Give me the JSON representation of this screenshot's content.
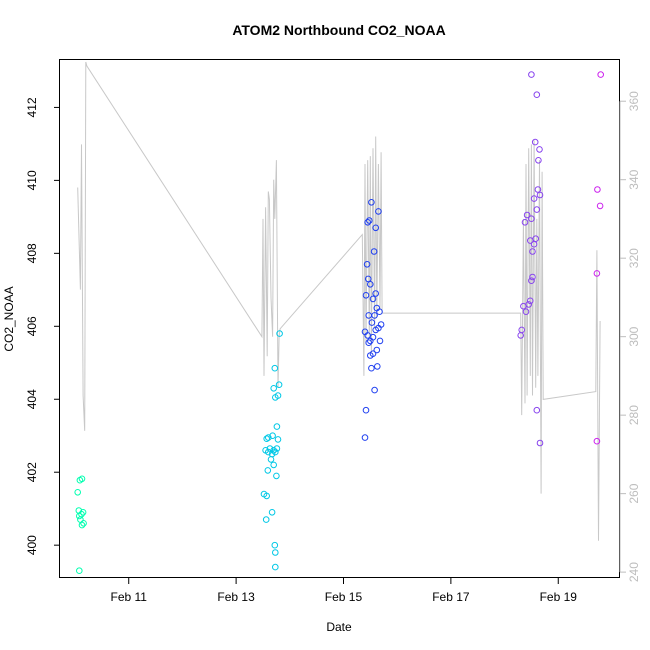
{
  "chart_data": {
    "type": "scatter",
    "title": "ATOM2 Northbound CO2_NOAA",
    "xlabel": "Date",
    "ylabel": "CO2_NOAA",
    "x_tick_labels": [
      "Feb 11",
      "Feb 13",
      "Feb 15",
      "Feb 17",
      "Feb 19"
    ],
    "x_tick_values": [
      11,
      13,
      15,
      17,
      19
    ],
    "xlim": [
      9.72,
      20.15
    ],
    "ylim": [
      399.1,
      413.3
    ],
    "y_ticks": [
      400,
      402,
      404,
      406,
      408,
      410,
      412
    ],
    "y2lim": [
      238.5,
      370.5
    ],
    "y2_ticks": [
      240,
      260,
      280,
      300,
      320,
      340,
      360
    ],
    "grid": false,
    "series": [
      {
        "color": "#00FFB0",
        "points": [
          [
            10.08,
            399.3
          ],
          [
            10.07,
            400.95
          ],
          [
            10.12,
            400.85
          ],
          [
            10.15,
            400.9
          ],
          [
            10.08,
            400.8
          ],
          [
            10.1,
            400.7
          ],
          [
            10.13,
            400.55
          ],
          [
            10.16,
            400.6
          ],
          [
            10.05,
            401.45
          ],
          [
            10.09,
            401.78
          ],
          [
            10.13,
            401.82
          ]
        ]
      },
      {
        "color": "#00C8E6",
        "points": [
          [
            13.52,
            401.4
          ],
          [
            13.57,
            401.35
          ],
          [
            13.56,
            400.7
          ],
          [
            13.67,
            400.9
          ],
          [
            13.72,
            400.0
          ],
          [
            13.73,
            399.8
          ],
          [
            13.73,
            399.4
          ],
          [
            13.59,
            402.05
          ],
          [
            13.7,
            402.2
          ],
          [
            13.65,
            402.35
          ],
          [
            13.75,
            401.9
          ],
          [
            13.55,
            402.6
          ],
          [
            13.6,
            402.55
          ],
          [
            13.63,
            402.65
          ],
          [
            13.67,
            402.5
          ],
          [
            13.7,
            402.6
          ],
          [
            13.73,
            402.55
          ],
          [
            13.76,
            402.65
          ],
          [
            13.57,
            402.92
          ],
          [
            13.6,
            402.95
          ],
          [
            13.68,
            403.0
          ],
          [
            13.78,
            402.9
          ],
          [
            13.76,
            403.25
          ],
          [
            13.7,
            404.3
          ],
          [
            13.73,
            404.05
          ],
          [
            13.78,
            404.1
          ],
          [
            13.8,
            404.4
          ],
          [
            13.72,
            404.85
          ],
          [
            13.81,
            405.8
          ]
        ]
      },
      {
        "color": "#2040F0",
        "points": [
          [
            15.4,
            402.95
          ],
          [
            15.42,
            403.7
          ],
          [
            15.58,
            404.25
          ],
          [
            15.4,
            405.85
          ],
          [
            15.45,
            405.75
          ],
          [
            15.5,
            405.6
          ],
          [
            15.55,
            405.7
          ],
          [
            15.6,
            405.9
          ],
          [
            15.65,
            405.95
          ],
          [
            15.47,
            406.3
          ],
          [
            15.53,
            406.1
          ],
          [
            15.58,
            406.3
          ],
          [
            15.62,
            406.5
          ],
          [
            15.67,
            406.4
          ],
          [
            15.7,
            406.05
          ],
          [
            15.55,
            406.75
          ],
          [
            15.6,
            406.9
          ],
          [
            15.42,
            406.85
          ],
          [
            15.46,
            407.3
          ],
          [
            15.5,
            407.15
          ],
          [
            15.44,
            407.7
          ],
          [
            15.57,
            408.05
          ],
          [
            15.6,
            408.7
          ],
          [
            15.45,
            408.85
          ],
          [
            15.48,
            408.9
          ],
          [
            15.65,
            409.15
          ],
          [
            15.52,
            409.4
          ],
          [
            15.55,
            405.25
          ],
          [
            15.5,
            405.2
          ],
          [
            15.63,
            404.9
          ],
          [
            15.52,
            404.85
          ],
          [
            15.47,
            405.55
          ],
          [
            15.62,
            405.35
          ],
          [
            15.68,
            405.6
          ]
        ]
      },
      {
        "color": "#8844EE",
        "points": [
          [
            18.3,
            405.75
          ],
          [
            18.32,
            405.9
          ],
          [
            18.35,
            406.55
          ],
          [
            18.4,
            406.4
          ],
          [
            18.45,
            406.6
          ],
          [
            18.48,
            406.7
          ],
          [
            18.5,
            407.25
          ],
          [
            18.52,
            407.35
          ],
          [
            18.48,
            408.35
          ],
          [
            18.52,
            408.05
          ],
          [
            18.55,
            408.25
          ],
          [
            18.58,
            408.4
          ],
          [
            18.38,
            408.85
          ],
          [
            18.42,
            409.05
          ],
          [
            18.5,
            408.95
          ],
          [
            18.55,
            409.5
          ],
          [
            18.6,
            409.2
          ],
          [
            18.62,
            409.75
          ],
          [
            18.66,
            409.6
          ],
          [
            18.63,
            410.55
          ],
          [
            18.65,
            410.85
          ],
          [
            18.57,
            411.05
          ],
          [
            18.6,
            412.35
          ],
          [
            18.5,
            412.9
          ],
          [
            18.6,
            403.7
          ],
          [
            18.66,
            402.8
          ]
        ]
      },
      {
        "color": "#CC22EE",
        "points": [
          [
            19.72,
            402.85
          ],
          [
            19.72,
            407.45
          ],
          [
            19.73,
            409.75
          ],
          [
            19.78,
            409.3
          ],
          [
            19.79,
            412.9
          ]
        ]
      }
    ],
    "secondary_line": {
      "color": "#C8C8C8",
      "x": [
        10.05,
        10.1,
        10.12,
        10.15,
        10.18,
        10.2,
        10.22,
        13.48,
        13.5,
        13.52,
        13.55,
        13.58,
        13.6,
        13.62,
        13.65,
        13.68,
        13.7,
        13.72,
        13.75,
        13.78,
        13.8,
        13.82,
        15.35,
        15.38,
        15.4,
        15.42,
        15.45,
        15.48,
        15.5,
        15.52,
        15.55,
        15.58,
        15.6,
        15.62,
        15.65,
        15.68,
        15.7,
        15.72,
        18.3,
        18.32,
        18.35,
        18.38,
        18.4,
        18.42,
        18.45,
        18.48,
        18.5,
        18.52,
        18.55,
        18.58,
        18.6,
        18.62,
        18.65,
        18.68,
        18.7,
        18.72,
        19.7,
        19.72,
        19.75,
        19.78
      ],
      "y": [
        338,
        312,
        349,
        285,
        276,
        370,
        369,
        300,
        330,
        290,
        333,
        295,
        337,
        335,
        310,
        300,
        340,
        330,
        345,
        287,
        300,
        302,
        326,
        290,
        344,
        298,
        345,
        300,
        346,
        296,
        348,
        302,
        351,
        305,
        344,
        307,
        347,
        306,
        306,
        280,
        330,
        283,
        344,
        285,
        348,
        290,
        349,
        285,
        350,
        287,
        330,
        290,
        345,
        260,
        342,
        284,
        286,
        322,
        248,
        304
      ]
    },
    "y2_ticks_range": [
      240,
      360
    ]
  }
}
